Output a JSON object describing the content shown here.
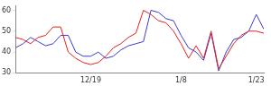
{
  "chart_data": {
    "type": "line",
    "categories": [
      null,
      null,
      null,
      null,
      null,
      null,
      null,
      null,
      null,
      null,
      "12/19",
      null,
      null,
      null,
      null,
      null,
      null,
      null,
      null,
      null,
      null,
      null,
      "1/8",
      null,
      null,
      null,
      null,
      null,
      null,
      null,
      null,
      null,
      "1/23",
      null
    ],
    "series": [
      {
        "color": "#e8201a",
        "values": [
          47,
          46,
          44,
          47,
          48,
          52,
          52,
          40,
          37,
          35,
          34,
          35,
          38,
          42,
          44,
          47,
          49,
          60,
          58,
          55,
          54,
          50,
          44,
          37,
          43,
          37,
          50,
          32,
          38,
          44,
          48,
          50,
          50,
          49
        ]
      },
      {
        "color": "#3b3bd6",
        "values": [
          42,
          44,
          47,
          45,
          43,
          44,
          48,
          48,
          40,
          38,
          38,
          40,
          37,
          38,
          41,
          43,
          44,
          45,
          60,
          59,
          56,
          55,
          48,
          42,
          40,
          36,
          49,
          31,
          40,
          46,
          47,
          50,
          58,
          51
        ]
      }
    ],
    "ylim": [
      30,
      62
    ],
    "yticks": [
      30,
      40,
      50,
      60
    ],
    "grid": false
  }
}
